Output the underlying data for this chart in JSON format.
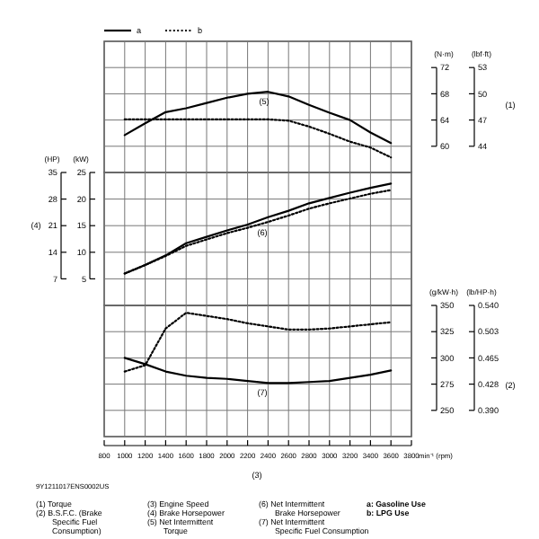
{
  "chart_data": [
    {
      "type": "line",
      "xlim": [
        800,
        3800
      ],
      "xticks": [
        800,
        1000,
        1200,
        1400,
        1600,
        1800,
        2000,
        2200,
        2400,
        2600,
        2800,
        3000,
        3200,
        3400,
        3600,
        3800
      ],
      "ylim": [
        56,
        76
      ],
      "yticks": [
        60,
        64,
        68,
        72
      ],
      "y2lim": [
        41,
        56
      ],
      "y2ticks": [
        44,
        47,
        50,
        53
      ],
      "ylabel": "(N·m)",
      "y2label": "(lbf·ft)",
      "grid": true,
      "legend": "top left",
      "tick_labels": "y",
      "x": [
        1000,
        1200,
        1400,
        1600,
        1800,
        2000,
        2200,
        2400,
        2600,
        2800,
        3000,
        3200,
        3400,
        3600
      ],
      "series": [
        {
          "name": "a",
          "color": "#000000",
          "line_style": "solid",
          "values": [
            61.7,
            63.5,
            65.2,
            65.8,
            66.6,
            67.4,
            68.0,
            68.3,
            67.6,
            66.3,
            65.1,
            64.0,
            62.1,
            60.5
          ]
        },
        {
          "name": "b",
          "color": "#000000",
          "line_style": "dotted",
          "values": [
            64.1,
            64.1,
            64.1,
            64.1,
            64.1,
            64.1,
            64.1,
            64.1,
            63.9,
            63.0,
            61.9,
            60.7,
            59.8,
            58.3
          ]
        }
      ],
      "annotations": [
        "(5)",
        "(1)"
      ]
    },
    {
      "type": "line",
      "xlim": [
        800,
        3800
      ],
      "xticks": [
        800,
        1000,
        1200,
        1400,
        1600,
        1800,
        2000,
        2200,
        2400,
        2600,
        2800,
        3000,
        3200,
        3400,
        3600,
        3800
      ],
      "ylim": [
        0,
        25
      ],
      "yticks": [
        5,
        10,
        15,
        20,
        25
      ],
      "y2lim": [
        0,
        35
      ],
      "y2ticks": [
        7,
        14,
        21,
        28,
        35
      ],
      "ylabel": "(kW)",
      "y2label": "(HP)",
      "grid": true,
      "tick_labels": "y",
      "x": [
        1000,
        1200,
        1400,
        1600,
        1800,
        2000,
        2200,
        2400,
        2600,
        2800,
        3000,
        3200,
        3400,
        3600
      ],
      "series": [
        {
          "color": "#000000",
          "line_style": "solid",
          "values": [
            6.0,
            7.6,
            9.4,
            11.7,
            12.9,
            14.1,
            15.2,
            16.6,
            17.8,
            19.2,
            20.2,
            21.2,
            22.1,
            22.9
          ]
        },
        {
          "color": "#000000",
          "line_style": "dotted",
          "values": [
            6.0,
            7.6,
            9.3,
            11.2,
            12.4,
            13.6,
            14.6,
            15.7,
            16.9,
            18.2,
            19.2,
            20.1,
            21.0,
            21.7
          ]
        }
      ],
      "annotations": [
        "(6)",
        "(4)"
      ]
    },
    {
      "type": "line",
      "xlim": [
        800,
        3800
      ],
      "xticks": [
        800,
        1000,
        1200,
        1400,
        1600,
        1800,
        2000,
        2200,
        2400,
        2600,
        2800,
        3000,
        3200,
        3400,
        3600,
        3800
      ],
      "ylim": [
        225,
        350
      ],
      "yticks": [
        250,
        275,
        300,
        325,
        350
      ],
      "y2lim": [
        0.3525,
        0.54
      ],
      "y2ticks": [
        {
          "value": 0.39,
          "label": "0.390"
        },
        {
          "value": 0.4275,
          "label": "0.428"
        },
        {
          "value": 0.465,
          "label": "0.465"
        },
        {
          "value": 0.5025,
          "label": "0.503"
        },
        {
          "value": 0.54,
          "label": "0.540"
        }
      ],
      "ylabel": "(g/kW·h)",
      "y2label": "(lb/HP·h)",
      "xlabel": "min⁻¹ (rpm)",
      "grid": true,
      "x": [
        1000,
        1200,
        1400,
        1600,
        1800,
        2000,
        2200,
        2400,
        2600,
        2800,
        3000,
        3200,
        3400,
        3600
      ],
      "series": [
        {
          "color": "#000000",
          "line_style": "solid",
          "values": [
            300,
            294,
            287,
            283,
            281,
            280,
            278,
            276,
            276,
            277,
            278,
            281,
            284,
            288
          ]
        },
        {
          "color": "#000000",
          "line_style": "dotted",
          "values": [
            287,
            293,
            328,
            343,
            340,
            337,
            333,
            330,
            327,
            327,
            328,
            330,
            332,
            334
          ]
        }
      ],
      "annotations": [
        "(7)",
        "(2)",
        "(3)",
        "9Y1211017ENS0002US",
        "(1) Torque",
        "(2) B.S.F.C. (Brake Specific Fuel Consumption)",
        "(3) Engine Speed",
        "(4) Brake Horsepower",
        "(5) Net Intermittent Torque",
        "(6) Net Intermittent Brake Horsepower",
        "(7) Net Intermittent Specific Fuel Consumption",
        "a: Gasoline Use",
        "b: LPG Use"
      ]
    }
  ]
}
